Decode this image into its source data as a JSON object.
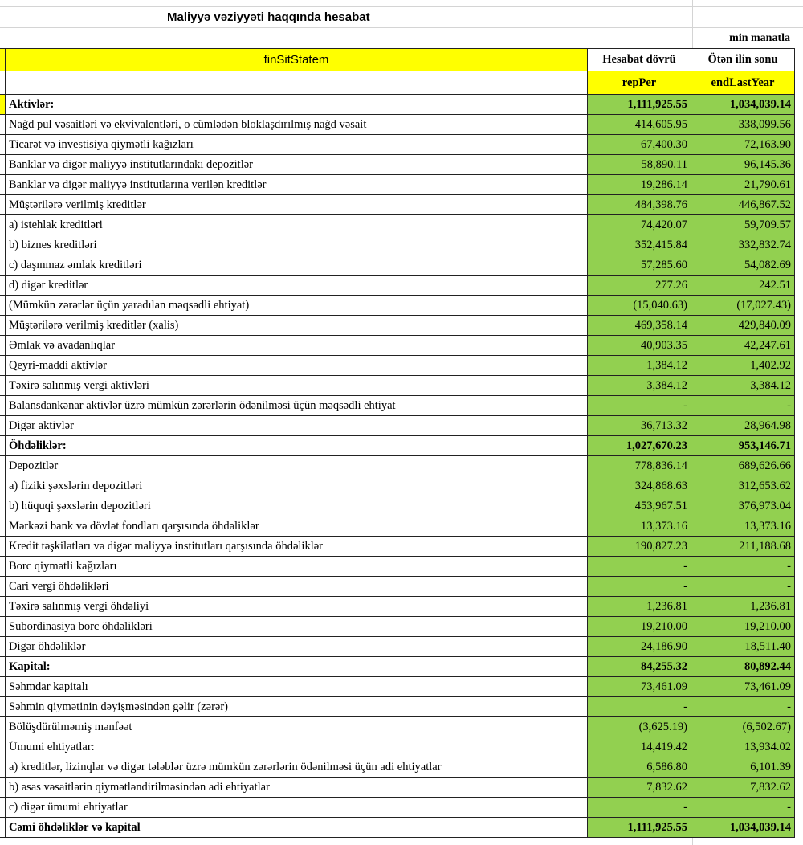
{
  "title": "Maliyyə vəziyyəti haqqında hesabat",
  "unit": "min manatla",
  "header": {
    "label": "finSitStatem",
    "col1": "Hesabat dövrü",
    "col2": "Ötən ilin sonu",
    "key1": "repPer",
    "key2": "endLastYear"
  },
  "colors": {
    "header_yellow": "#ffff00",
    "value_green": "#92d050"
  },
  "rows": [
    {
      "label": "Aktivlər:",
      "rep": "1,111,925.55",
      "last": "1,034,039.14",
      "bold": true
    },
    {
      "label": "Nağd pul vəsaitləri və  ekvivalentləri, o cümlədən bloklaşdırılmış nağd vəsait",
      "rep": "414,605.95",
      "last": "338,099.56"
    },
    {
      "label": "Ticarət və investisiya qiymətli kağızları",
      "rep": "67,400.30",
      "last": "72,163.90"
    },
    {
      "label": "Banklar və digər maliyyə institutlarındakı depozitlər",
      "rep": "58,890.11",
      "last": "96,145.36"
    },
    {
      "label": "Banklar və digər maliyyə institutlarına verilən kreditlər",
      "rep": "19,286.14",
      "last": "21,790.61"
    },
    {
      "label": "Müştərilərə verilmiş kreditlər",
      "rep": "484,398.76",
      "last": "446,867.52"
    },
    {
      "label": "a) istehlak kreditləri",
      "rep": "74,420.07",
      "last": "59,709.57"
    },
    {
      "label": "b) biznes kreditləri",
      "rep": "352,415.84",
      "last": "332,832.74"
    },
    {
      "label": "c) daşınmaz əmlak kreditləri",
      "rep": "57,285.60",
      "last": "54,082.69"
    },
    {
      "label": "d) digər kreditlər",
      "rep": "277.26",
      "last": "242.51"
    },
    {
      "label": "(Mümkün zərərlər üçün yaradılan məqsədli ehtiyat)",
      "rep": "(15,040.63)",
      "last": "(17,027.43)"
    },
    {
      "label": "Müştərilərə verilmiş kreditlər (xalis)",
      "rep": "469,358.14",
      "last": "429,840.09"
    },
    {
      "label": "Əmlak və avadanlıqlar",
      "rep": "40,903.35",
      "last": "42,247.61"
    },
    {
      "label": "Qeyri-maddi aktivlər",
      "rep": "1,384.12",
      "last": "1,402.92"
    },
    {
      "label": "Təxirə salınmış vergi aktivləri",
      "rep": "3,384.12",
      "last": "3,384.12"
    },
    {
      "label": "Balansdankənar aktivlər üzrə mümkün zərərlərin ödənilməsi üçün məqsədli ehtiyat",
      "rep": "-",
      "last": "-"
    },
    {
      "label": "Digər aktivlər",
      "rep": "36,713.32",
      "last": "28,964.98"
    },
    {
      "label": "Öhdəliklər:",
      "rep": "1,027,670.23",
      "last": "953,146.71",
      "bold": true
    },
    {
      "label": "Depozitlər",
      "rep": "778,836.14",
      "last": "689,626.66"
    },
    {
      "label": "a) fiziki şəxslərin depozitləri",
      "rep": "324,868.63",
      "last": "312,653.62"
    },
    {
      "label": "b) hüquqi şəxslərin depozitləri",
      "rep": "453,967.51",
      "last": "376,973.04"
    },
    {
      "label": "Mərkəzi bank və dövlət fondları qarşısında öhdəliklər",
      "rep": "13,373.16",
      "last": "13,373.16"
    },
    {
      "label": "Kredit təşkilatları və digər maliyyə institutları qarşısında öhdəliklər",
      "rep": "190,827.23",
      "last": "211,188.68"
    },
    {
      "label": "Borc qiymətli kağızları",
      "rep": "-",
      "last": "-"
    },
    {
      "label": "Cari vergi öhdəlikləri",
      "rep": "-",
      "last": "-"
    },
    {
      "label": "Təxirə salınmış vergi öhdəliyi",
      "rep": "1,236.81",
      "last": "1,236.81"
    },
    {
      "label": "Subordinasiya borc öhdəlikləri",
      "rep": "19,210.00",
      "last": "19,210.00"
    },
    {
      "label": "Digər öhdəliklər",
      "rep": "24,186.90",
      "last": "18,511.40"
    },
    {
      "label": "Kapital:",
      "rep": "84,255.32",
      "last": "80,892.44",
      "bold": true
    },
    {
      "label": "Səhmdar kapitalı",
      "rep": "73,461.09",
      "last": "73,461.09"
    },
    {
      "label": "Səhmin qiymətinin dəyişməsindən gəlir (zərər)",
      "rep": "-",
      "last": "-"
    },
    {
      "label": "Bölüşdürülməmiş mənfəət",
      "rep": "(3,625.19)",
      "last": "(6,502.67)"
    },
    {
      "label": "Ümumi ehtiyatlar:",
      "rep": "14,419.42",
      "last": "13,934.02"
    },
    {
      "label": "a) kreditlər, lizinqlər və digər tələblər üzrə mümkün zərərlərin ödənilməsi üçün adi ehtiyatlar",
      "rep": "6,586.80",
      "last": "6,101.39"
    },
    {
      "label": "b) əsas vəsaitlərin qiymətləndirilməsindən adi ehtiyatlar",
      "rep": "7,832.62",
      "last": "7,832.62"
    },
    {
      "label": "c) digər ümumi ehtiyatlar",
      "rep": "-",
      "last": "-"
    },
    {
      "label": "Cəmi öhdəliklər və kapital",
      "rep": "1,111,925.55",
      "last": "1,034,039.14",
      "bold": true
    }
  ]
}
